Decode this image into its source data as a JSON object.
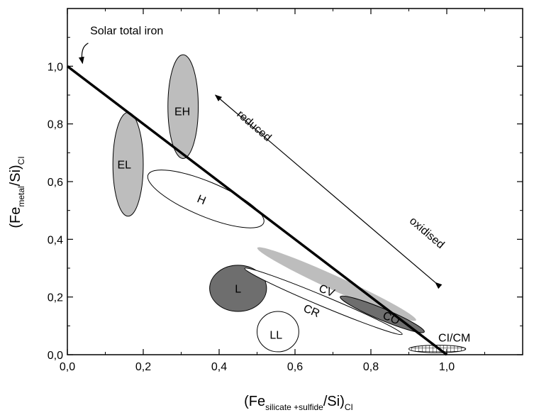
{
  "chart_data": {
    "type": "scatter",
    "xlabel": {
      "base": "(Fe",
      "sub": "silicate +sulfide",
      "tail": "/Si)",
      "tail_sub": "CI"
    },
    "ylabel": {
      "base": "(Fe",
      "sub": "metal",
      "tail": "/Si)",
      "tail_sub": "CI"
    },
    "xlim": [
      0,
      1.2
    ],
    "ylim": [
      0,
      1.2
    ],
    "x_ticks": [
      0.0,
      0.2,
      0.4,
      0.6,
      0.8,
      1.0
    ],
    "x_tick_labels": [
      "0,0",
      "0,2",
      "0,4",
      "0,6",
      "0,8",
      "1,0"
    ],
    "y_ticks": [
      0.0,
      0.2,
      0.4,
      0.6,
      0.8,
      1.0
    ],
    "y_tick_labels": [
      "0,0",
      "0,2",
      "0,4",
      "0,6",
      "0,8",
      "1,0"
    ],
    "grid": false,
    "solar_line": {
      "label": "Solar total iron",
      "x": [
        0.0,
        1.0
      ],
      "y": [
        1.0,
        0.0
      ]
    },
    "trend_arrow": {
      "from": [
        0.97,
        0.25
      ],
      "to": [
        0.39,
        0.9
      ],
      "label_reduced": "reduced",
      "label_oxidised": "oxidised"
    },
    "regions": [
      {
        "name": "EH",
        "cx": 0.305,
        "cy": 0.86,
        "rx": 0.04,
        "ry": 0.18,
        "rot": 0,
        "fill": "#bdbdbd"
      },
      {
        "name": "EL",
        "cx": 0.16,
        "cy": 0.66,
        "rx": 0.04,
        "ry": 0.18,
        "rot": 0,
        "fill": "#bdbdbd"
      },
      {
        "name": "H",
        "cx": 0.365,
        "cy": 0.54,
        "rx": 0.165,
        "ry": 0.06,
        "rot": -0.55,
        "fill": "#ffffff"
      },
      {
        "name": "L",
        "cx": 0.45,
        "cy": 0.23,
        "rx": 0.075,
        "ry": 0.08,
        "rot": 0,
        "fill": "#6e6e6e"
      },
      {
        "name": "LL",
        "cx": 0.555,
        "cy": 0.08,
        "rx": 0.055,
        "ry": 0.07,
        "rot": 0,
        "fill": "#ffffff"
      },
      {
        "name": "CR",
        "cx": 0.675,
        "cy": 0.185,
        "rx": 0.225,
        "ry": 0.018,
        "rot": -0.55,
        "fill": "#ffffff"
      },
      {
        "name": "CV",
        "cx": 0.71,
        "cy": 0.245,
        "rx": 0.23,
        "ry": 0.025,
        "rot": -0.6,
        "fill": "#bdbdbd"
      },
      {
        "name": "CO",
        "cx": 0.83,
        "cy": 0.14,
        "rx": 0.12,
        "ry": 0.02,
        "rot": -0.55,
        "fill": "#6e6e6e"
      },
      {
        "name": "CI/CM",
        "cx": 0.975,
        "cy": 0.02,
        "rx": 0.075,
        "ry": 0.013,
        "rot": 0,
        "fill": "hatch"
      }
    ],
    "region_labels": [
      {
        "name": "EH",
        "text": "EH",
        "x": 0.303,
        "y": 0.845
      },
      {
        "name": "EL",
        "text": "EL",
        "x": 0.15,
        "y": 0.66
      },
      {
        "name": "H",
        "text": "H",
        "x": 0.35,
        "y": 0.54
      },
      {
        "name": "L",
        "text": "L",
        "x": 0.45,
        "y": 0.23
      },
      {
        "name": "LL",
        "text": "LL",
        "x": 0.55,
        "y": 0.07
      },
      {
        "name": "CR",
        "text": "CR",
        "x": 0.64,
        "y": 0.155
      },
      {
        "name": "CV",
        "text": "CV",
        "x": 0.68,
        "y": 0.225
      },
      {
        "name": "CO",
        "text": "CO",
        "x": 0.85,
        "y": 0.13
      },
      {
        "name": "CI-CM",
        "text": "CI/CM",
        "x": 1.02,
        "y": 0.06
      }
    ]
  },
  "colors": {
    "light_gray": "#bdbdbd",
    "dark_gray": "#6e6e6e",
    "axis": "#000000"
  }
}
